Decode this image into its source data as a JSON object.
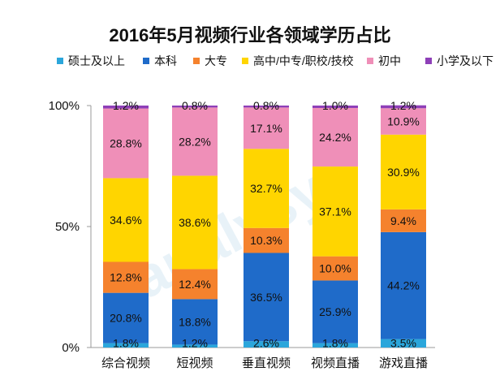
{
  "chart_data": {
    "type": "bar",
    "stacked": true,
    "title": "2016年5月视频行业各领域学历占比",
    "categories": [
      "综合视频",
      "短视频",
      "垂直视频",
      "视频直播",
      "游戏直播"
    ],
    "series": [
      {
        "name": "硕士及以上",
        "color": "#2ba6db",
        "values": [
          1.8,
          1.2,
          2.6,
          1.8,
          3.5
        ],
        "labels": [
          "1.8%",
          "1.2%",
          "2.6%",
          "1.8%",
          "3.5%"
        ]
      },
      {
        "name": "本科",
        "color": "#1f6bc9",
        "values": [
          20.8,
          18.8,
          36.5,
          25.9,
          44.2
        ],
        "labels": [
          "20.8%",
          "18.8%",
          "36.5%",
          "25.9%",
          "44.2%"
        ]
      },
      {
        "name": "大专",
        "color": "#f5822d",
        "values": [
          12.8,
          12.4,
          10.3,
          10.0,
          9.4
        ],
        "labels": [
          "12.8%",
          "12.4%",
          "10.3%",
          "10.0%",
          "9.4%"
        ]
      },
      {
        "name": "高中/中专/职校/技校",
        "color": "#ffd500",
        "values": [
          34.6,
          38.6,
          32.7,
          37.1,
          30.9
        ],
        "labels": [
          "34.6%",
          "38.6%",
          "32.7%",
          "37.1%",
          "30.9%"
        ]
      },
      {
        "name": "初中",
        "color": "#ef8fb8",
        "values": [
          28.8,
          28.2,
          17.1,
          24.2,
          10.9
        ],
        "labels": [
          "28.8%",
          "28.2%",
          "17.1%",
          "24.2%",
          "10.9%"
        ]
      },
      {
        "name": "小学及以下",
        "color": "#8e3fb8",
        "values": [
          1.2,
          0.8,
          0.8,
          1.0,
          1.2
        ],
        "labels": [
          "1.2%",
          "0.8%",
          "0.8%",
          "1.0%",
          "1.2%"
        ]
      }
    ],
    "yticks": [
      "0%",
      "50%",
      "100%"
    ],
    "ylim": [
      0,
      100
    ],
    "legend_position": "top",
    "watermark": "analysys"
  }
}
